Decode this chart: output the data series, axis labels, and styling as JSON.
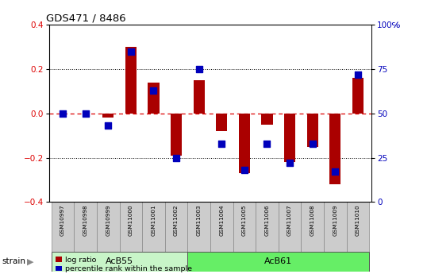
{
  "title": "GDS471 / 8486",
  "samples": [
    "GSM10997",
    "GSM10998",
    "GSM10999",
    "GSM11000",
    "GSM11001",
    "GSM11002",
    "GSM11003",
    "GSM11004",
    "GSM11005",
    "GSM11006",
    "GSM11007",
    "GSM11008",
    "GSM11009",
    "GSM11010"
  ],
  "log_ratio": [
    0.0,
    0.0,
    -0.02,
    0.3,
    0.14,
    -0.19,
    0.15,
    -0.08,
    -0.27,
    -0.05,
    -0.22,
    -0.15,
    -0.32,
    0.16
  ],
  "percentile": [
    50,
    50,
    43,
    85,
    63,
    25,
    75,
    33,
    18,
    33,
    22,
    33,
    17,
    72
  ],
  "groups": [
    {
      "label": "AcB55",
      "start": 0,
      "end": 5
    },
    {
      "label": "AcB61",
      "start": 6,
      "end": 13
    }
  ],
  "group_colors": [
    "#c8f5c8",
    "#66ee66"
  ],
  "ylim": [
    -0.4,
    0.4
  ],
  "yticks_left": [
    -0.4,
    -0.2,
    0.0,
    0.2,
    0.4
  ],
  "yticks_right": [
    0,
    25,
    50,
    75,
    100
  ],
  "bar_color": "#aa0000",
  "dot_color": "#0000bb",
  "zero_line_color": "#dd0000",
  "background_color": "#ffffff",
  "plot_bg_color": "#ffffff",
  "label_bg_color": "#cccccc",
  "strain_label": "strain",
  "legend_logratio": "log ratio",
  "legend_percentile": "percentile rank within the sample",
  "bar_width": 0.5,
  "dot_size": 40
}
